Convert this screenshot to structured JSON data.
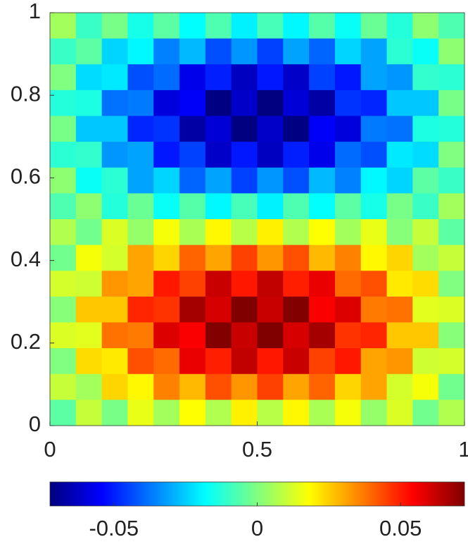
{
  "chart_data": {
    "type": "heatmap",
    "colormap": "jet",
    "xlim": [
      0,
      1
    ],
    "ylim": [
      0,
      1
    ],
    "xticks": [
      0,
      0.5,
      1
    ],
    "yticks": [
      0,
      0.2,
      0.4,
      0.6,
      0.8,
      1
    ],
    "clim": [
      -0.0723,
      0.0723
    ],
    "cticks": [
      -0.05,
      0,
      0.05
    ],
    "z": [
      [
        0.005,
        -0.01,
        -0.001,
        -0.015,
        -0.005,
        -0.018,
        -0.007,
        -0.02,
        -0.008,
        -0.019,
        -0.006,
        -0.017,
        -0.003,
        -0.013,
        0.002,
        -0.007
      ],
      [
        -0.01,
        -0.005,
        -0.024,
        -0.019,
        -0.036,
        -0.028,
        -0.043,
        -0.033,
        -0.045,
        -0.031,
        -0.04,
        -0.024,
        -0.031,
        -0.012,
        -0.017,
        0.002
      ],
      [
        0.0,
        -0.023,
        -0.021,
        -0.043,
        -0.039,
        -0.057,
        -0.05,
        -0.063,
        -0.051,
        -0.062,
        -0.045,
        -0.051,
        -0.031,
        -0.033,
        -0.011,
        -0.012
      ],
      [
        -0.013,
        -0.014,
        -0.038,
        -0.037,
        -0.059,
        -0.055,
        -0.072,
        -0.062,
        -0.074,
        -0.06,
        -0.067,
        -0.047,
        -0.049,
        -0.026,
        -0.026,
        -0.001
      ],
      [
        -0.001,
        -0.026,
        -0.026,
        -0.049,
        -0.047,
        -0.067,
        -0.06,
        -0.074,
        -0.062,
        -0.072,
        -0.055,
        -0.059,
        -0.037,
        -0.038,
        -0.014,
        -0.013
      ],
      [
        -0.012,
        -0.011,
        -0.033,
        -0.031,
        -0.051,
        -0.045,
        -0.062,
        -0.051,
        -0.063,
        -0.05,
        -0.057,
        -0.039,
        -0.043,
        -0.021,
        -0.023,
        0.0
      ],
      [
        0.002,
        -0.017,
        -0.012,
        -0.031,
        -0.024,
        -0.04,
        -0.031,
        -0.045,
        -0.033,
        -0.043,
        -0.028,
        -0.036,
        -0.019,
        -0.024,
        -0.005,
        -0.01
      ],
      [
        -0.007,
        0.002,
        -0.013,
        -0.003,
        -0.017,
        -0.006,
        -0.019,
        -0.008,
        -0.02,
        -0.007,
        -0.018,
        -0.005,
        -0.015,
        -0.001,
        -0.01,
        0.005
      ],
      [
        0.007,
        -0.002,
        0.013,
        0.003,
        0.017,
        0.006,
        0.019,
        0.008,
        0.02,
        0.007,
        0.018,
        0.005,
        0.015,
        0.001,
        0.01,
        -0.005
      ],
      [
        -0.002,
        0.017,
        0.012,
        0.031,
        0.024,
        0.04,
        0.031,
        0.045,
        0.033,
        0.043,
        0.028,
        0.036,
        0.019,
        0.024,
        0.005,
        0.01
      ],
      [
        0.012,
        0.011,
        0.033,
        0.031,
        0.051,
        0.045,
        0.062,
        0.051,
        0.063,
        0.05,
        0.057,
        0.039,
        0.043,
        0.021,
        0.023,
        0.0
      ],
      [
        0.001,
        0.026,
        0.026,
        0.049,
        0.047,
        0.067,
        0.06,
        0.074,
        0.062,
        0.072,
        0.055,
        0.059,
        0.037,
        0.038,
        0.014,
        0.013
      ],
      [
        0.013,
        0.014,
        0.038,
        0.037,
        0.059,
        0.055,
        0.072,
        0.062,
        0.074,
        0.06,
        0.067,
        0.047,
        0.049,
        0.026,
        0.026,
        0.001
      ],
      [
        0.0,
        0.023,
        0.021,
        0.043,
        0.039,
        0.057,
        0.05,
        0.063,
        0.051,
        0.062,
        0.045,
        0.051,
        0.031,
        0.033,
        0.011,
        0.012
      ],
      [
        0.01,
        0.005,
        0.024,
        0.019,
        0.036,
        0.028,
        0.043,
        0.033,
        0.045,
        0.031,
        0.04,
        0.024,
        0.031,
        0.012,
        0.017,
        -0.002
      ],
      [
        -0.005,
        0.01,
        -0.001,
        0.015,
        0.005,
        0.018,
        0.007,
        0.02,
        0.008,
        0.019,
        0.006,
        0.017,
        0.003,
        0.013,
        -0.002,
        0.007
      ]
    ]
  }
}
